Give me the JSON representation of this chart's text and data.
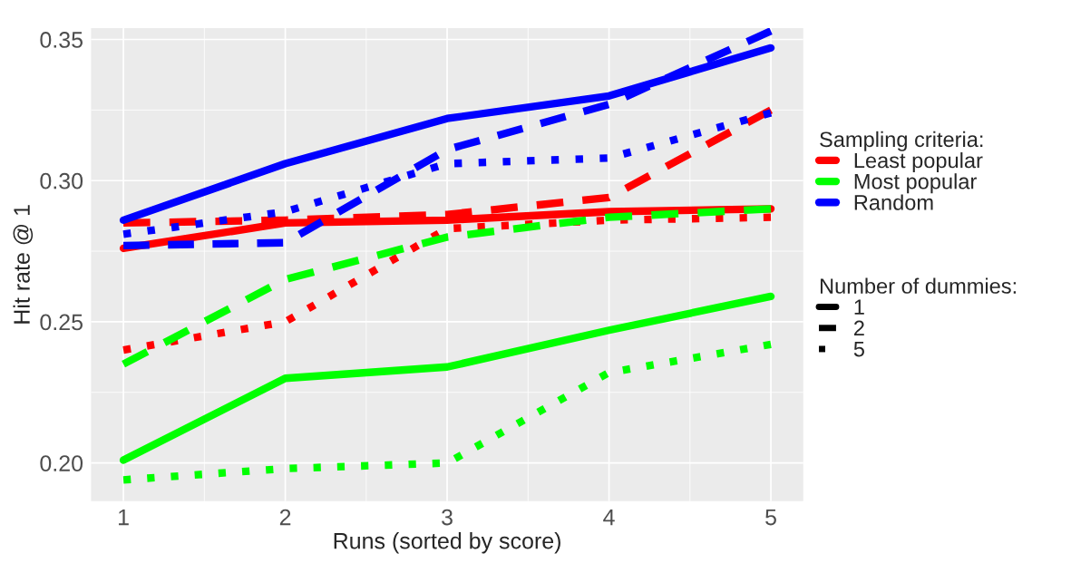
{
  "chart_data": {
    "type": "line",
    "xlabel": "Runs (sorted by score)",
    "ylabel": "Hit rate @ 1",
    "legend_title": [
      "Sampling criteria:",
      "Number of dummies:"
    ],
    "annotations": [
      "1",
      "2",
      "5"
    ],
    "x": [
      1,
      2,
      3,
      4,
      5
    ],
    "xlim": [
      0.8,
      5.2
    ],
    "xticks": [
      1,
      2,
      3,
      4,
      5
    ],
    "ylim": [
      0.1865,
      0.354
    ],
    "yticks": [
      {
        "value": 0.2,
        "label": "0.20"
      },
      {
        "value": 0.25,
        "label": "0.25"
      },
      {
        "value": 0.3,
        "label": "0.30"
      },
      {
        "value": 0.35,
        "label": "0.35"
      }
    ],
    "grid": true,
    "legend": "right",
    "series": [
      {
        "name": "Least popular",
        "color": "#ff0000",
        "line_style": "solid",
        "values": [
          0.276,
          0.285,
          0.286,
          0.289,
          0.29
        ]
      },
      {
        "color": "#ff0000",
        "line_style": "dashed",
        "values": [
          0.285,
          0.286,
          0.288,
          0.294,
          0.325
        ]
      },
      {
        "color": "#ff0000",
        "line_style": "dotted",
        "values": [
          0.24,
          0.25,
          0.283,
          0.286,
          0.287
        ]
      },
      {
        "name": "Most popular",
        "color": "#00ff00",
        "line_style": "solid",
        "values": [
          0.201,
          0.23,
          0.234,
          0.247,
          0.259
        ]
      },
      {
        "color": "#00ff00",
        "line_style": "dashed",
        "values": [
          0.235,
          0.265,
          0.28,
          0.287,
          0.29
        ]
      },
      {
        "color": "#00ff00",
        "line_style": "dotted",
        "values": [
          0.194,
          0.198,
          0.2,
          0.232,
          0.242
        ]
      },
      {
        "name": "Random",
        "color": "#0000ff",
        "line_style": "solid",
        "values": [
          0.286,
          0.306,
          0.322,
          0.33,
          0.347
        ]
      },
      {
        "color": "#0000ff",
        "line_style": "dashed",
        "values": [
          0.277,
          0.278,
          0.311,
          0.327,
          0.353
        ]
      },
      {
        "color": "#0000ff",
        "line_style": "dotted",
        "values": [
          0.281,
          0.289,
          0.306,
          0.308,
          0.324
        ]
      }
    ]
  }
}
